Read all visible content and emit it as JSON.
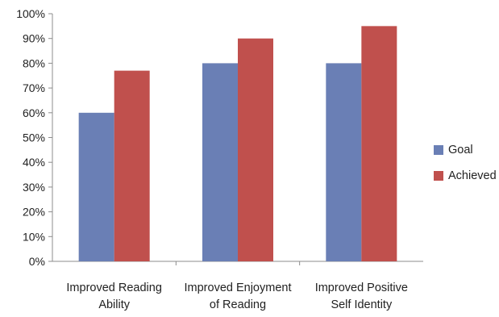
{
  "chart_data": {
    "type": "bar",
    "categories": [
      [
        "Improved Reading",
        "Ability"
      ],
      [
        "Improved Enjoyment",
        "of Reading"
      ],
      [
        "Improved Positive",
        "Self Identity"
      ]
    ],
    "series": [
      {
        "name": "Goal",
        "color": "#6a7fb5",
        "values": [
          60,
          80,
          80
        ]
      },
      {
        "name": "Achieved",
        "color": "#c0504d",
        "values": [
          77,
          90,
          95
        ]
      }
    ],
    "ylim": [
      0,
      100
    ],
    "yticks": [
      "0%",
      "10%",
      "20%",
      "30%",
      "40%",
      "50%",
      "60%",
      "70%",
      "80%",
      "90%",
      "100%"
    ],
    "legend_position": "right",
    "grid": false
  }
}
